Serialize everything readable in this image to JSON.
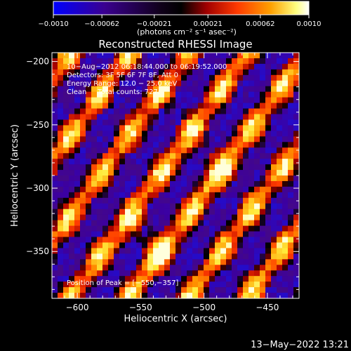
{
  "chart_data": {
    "type": "heatmap",
    "title": "Reconstructed RHESSI Image",
    "xlabel": "Heliocentric X (arcsec)",
    "ylabel": "Heliocentric Y (arcsec)",
    "xlim": [
      -620,
      -425
    ],
    "ylim": [
      -387,
      -193
    ],
    "x_ticks": [
      -600,
      -550,
      -500,
      -450
    ],
    "y_ticks": [
      -200,
      -250,
      -300,
      -350
    ],
    "x_tick_labels": [
      "−600",
      "−550",
      "−500",
      "−450"
    ],
    "y_tick_labels": [
      "−200",
      "−250",
      "−300",
      "−350"
    ],
    "colorbar": {
      "range": [
        -0.001,
        0.001
      ],
      "ticks": [
        -0.001,
        -0.00062,
        -0.00021,
        0.00021,
        0.00062,
        0.001
      ],
      "tick_labels": [
        "−0.0010",
        "−0.00062",
        "−0.00021",
        "0.00021",
        "0.00062",
        "0.0010"
      ],
      "unit_label": "(photons cm⁻² s⁻¹ asec⁻²)",
      "colormap": [
        "#0000ff",
        "#4b0082",
        "#000000",
        "#b00000",
        "#ff5000",
        "#ffa000",
        "#ffff60",
        "#ffffff"
      ]
    },
    "annotations": [
      "10−Aug−2012 06:18:44.000 to 06:19:52.000",
      "Detectors: 3F 5F 6F 7F 8F, Att 0",
      "Energy Range: 12.0 − 25.0 keV",
      "Clean     Total counts: 727."
    ],
    "peak_label": "Position of Peak = [−550,−357]",
    "peak": [
      -550,
      -357
    ]
  },
  "footer": {
    "timestamp": "13−May−2022 13:21"
  }
}
